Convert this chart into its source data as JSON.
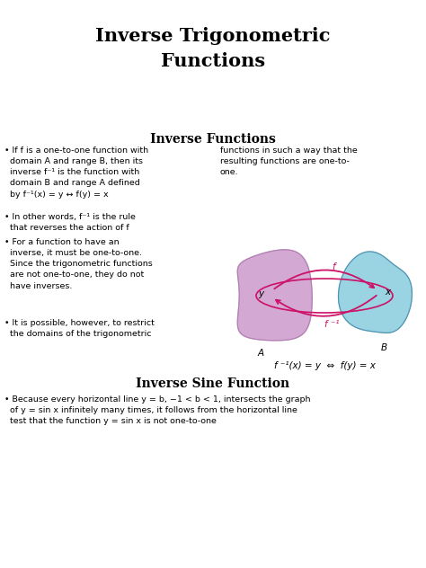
{
  "title_line1": "Inverse Trigonometric",
  "title_line2": "Functions",
  "section1": "Inverse Functions",
  "section2": "Inverse Sine Function",
  "bg_color": "#ffffff",
  "text_color": "#000000",
  "blob_A_color": "#cc99cc",
  "blob_B_color": "#88ccdd",
  "arrow_color": "#cc1166",
  "title_fontsize": 15,
  "section_fontsize": 10,
  "body_fontsize": 6.8,
  "fig_width": 4.74,
  "fig_height": 6.32,
  "dpi": 100
}
